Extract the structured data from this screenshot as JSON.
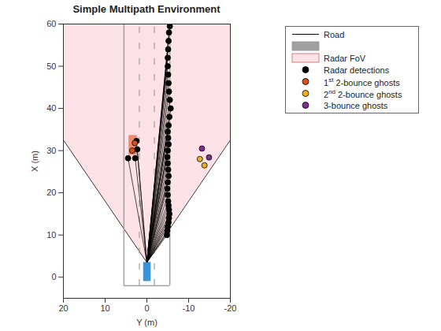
{
  "chart_data": {
    "type": "scatter",
    "title": "Simple Multipath Environment",
    "xlabel": "Y (m)",
    "ylabel": "X (m)",
    "xlim": [
      20,
      -20
    ],
    "ylim": [
      -5,
      60
    ],
    "xticks": [
      20,
      10,
      0,
      -10,
      -20
    ],
    "yticks": [
      0,
      10,
      20,
      30,
      40,
      50,
      60
    ],
    "grid": false,
    "legend": "outside",
    "rays": {
      "name": "Road",
      "color": "#000000"
    },
    "road": {
      "color": "#a0a0a0",
      "edges": [
        5.5,
        -5.5
      ],
      "lanes": [
        1.8,
        -1.8
      ],
      "start": -2,
      "end": 60
    },
    "fov": {
      "name": "Radar FoV",
      "color": "#fde3e7",
      "origin": [
        0,
        3.5
      ],
      "edges": [
        [
          20,
          32.5
        ],
        [
          -20,
          32.5
        ]
      ]
    },
    "vehicles": [
      {
        "color": "#3a93d6",
        "x": [
          0.8,
          -1
        ],
        "y": [
          -1,
          3.5
        ]
      },
      {
        "color": "#f08a6a",
        "x": [
          4.3,
          2.3
        ],
        "y": [
          28.9,
          33.6
        ]
      }
    ],
    "series": [
      {
        "name": "Radar detections",
        "color": "#000000",
        "marker": "circle",
        "x": [
          -5.5,
          -5.3,
          -5.2,
          -5.1,
          -5.0,
          -5.0,
          -5.1,
          -5.2,
          -5.3,
          -5.5,
          -5.7,
          -5.4,
          -5.2,
          -5.0,
          -5.1,
          -5.2,
          -5.0,
          -4.9,
          -5.0,
          -5.1,
          -5.2,
          -5.0,
          -4.9,
          -5.0,
          -5.1,
          -5.2,
          -5.3,
          -5.4,
          -5.3,
          -5.2,
          -5.0,
          -4.9,
          -4.8,
          4.5,
          2.8,
          2.3,
          2.5
        ],
        "values": [
          59.5,
          58,
          56,
          54,
          52,
          50,
          48,
          46,
          44,
          42,
          40,
          38,
          36,
          34.5,
          33,
          31.5,
          30,
          28.5,
          27,
          25.5,
          24,
          22.5,
          21,
          19.5,
          18,
          17,
          16,
          15,
          14,
          13,
          12,
          11,
          10,
          28.2,
          28.2,
          30.3,
          32.3
        ]
      },
      {
        "name": "1st 2-bounce ghosts",
        "color": "#d95319",
        "marker": "circle",
        "x": [
          3.5,
          2.9
        ],
        "values": [
          30.0,
          31.8
        ]
      },
      {
        "name": "2nd 2-bounce ghosts",
        "color": "#edb120",
        "marker": "circle",
        "x": [
          -12.7,
          -13.8
        ],
        "values": [
          28.0,
          26.5
        ]
      },
      {
        "name": "3-bounce ghosts",
        "color": "#7e2f8e",
        "marker": "circle",
        "x": [
          -13.2,
          -14.9
        ],
        "values": [
          30.5,
          28.4
        ]
      }
    ]
  }
}
